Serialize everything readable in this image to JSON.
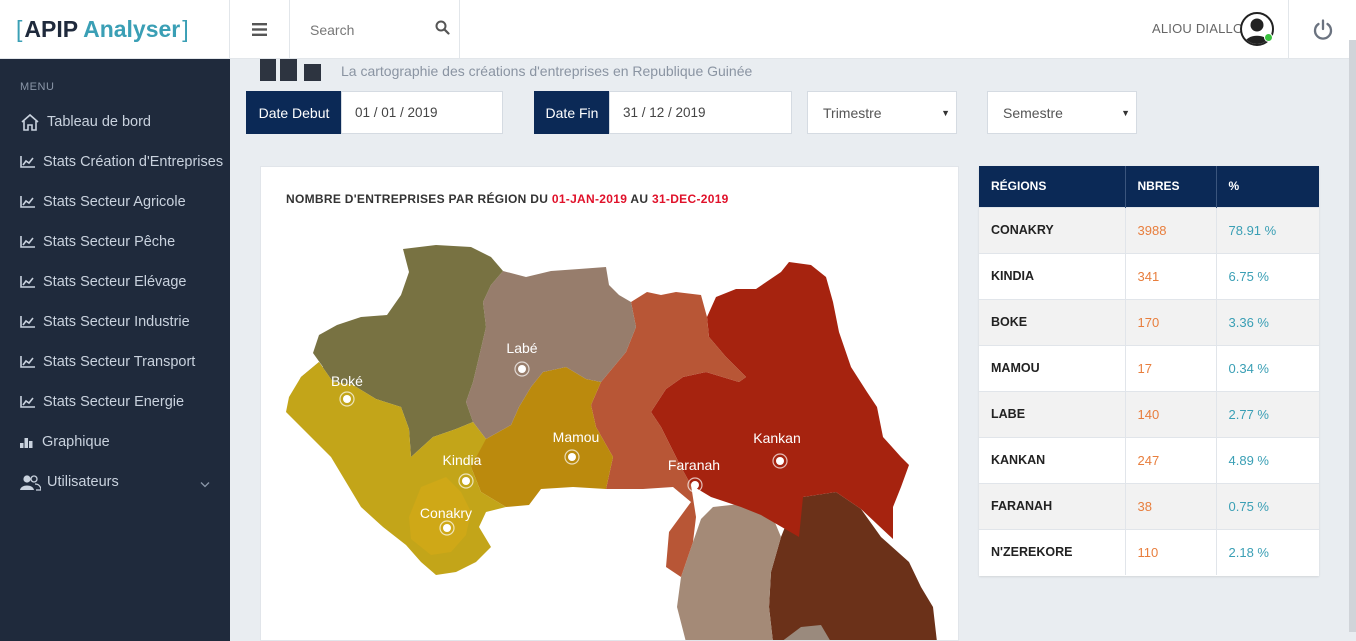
{
  "brand": {
    "open": "[",
    "name1": "APIP",
    "name2": "Analyser",
    "close": "]"
  },
  "header": {
    "search_placeholder": "Search",
    "user_name": "ALIOU DIALLO"
  },
  "sidebar": {
    "menu_title": "MENU",
    "items": [
      {
        "label": "Tableau de bord",
        "icon": "home-icon"
      },
      {
        "label": "Stats Création d'Entreprises",
        "icon": "line-chart-icon"
      },
      {
        "label": "Stats Secteur Agricole",
        "icon": "line-chart-icon"
      },
      {
        "label": "Stats Secteur Pêche",
        "icon": "line-chart-icon"
      },
      {
        "label": "Stats Secteur Elévage",
        "icon": "line-chart-icon"
      },
      {
        "label": "Stats Secteur Industrie",
        "icon": "line-chart-icon"
      },
      {
        "label": "Stats Secteur Transport",
        "icon": "line-chart-icon"
      },
      {
        "label": "Stats Secteur Energie",
        "icon": "line-chart-icon"
      },
      {
        "label": "Graphique",
        "icon": "bar-chart-icon"
      },
      {
        "label": "Utilisateurs",
        "icon": "users-icon"
      }
    ]
  },
  "page": {
    "subtitle": "La cartographie des créations d'entreprises en Republique Guinée"
  },
  "filters": {
    "date_debut_label": "Date Debut",
    "date_debut_value": "01 / 01 / 2019",
    "date_fin_label": "Date Fin",
    "date_fin_value": "31 / 12 / 2019",
    "trimestre": "Trimestre",
    "semestre": "Semestre"
  },
  "map": {
    "title_prefix": "NOMBRE D'ENTREPRISES PAR RÉGION DU",
    "date_from": "01-JAN-2019",
    "connector": "AU",
    "date_to": "31-DEC-2019",
    "labels": {
      "boke": "Boké",
      "labe": "Labé",
      "mamou": "Mamou",
      "kindia": "Kindia",
      "conakry": "Conakry",
      "faranah": "Faranah",
      "kankan": "Kankan"
    },
    "colors": {
      "boke": "#787242",
      "labe": "#977d6c",
      "mamou": "#bb8a0d",
      "kindia": "#c3a519",
      "faranah": "#b85636",
      "kankan": "#a6230f",
      "nzerekore": "#6b3119",
      "south": "#a48a77"
    }
  },
  "table": {
    "headers": {
      "region": "RÉGIONS",
      "count": "NBRES",
      "pct": "%"
    },
    "rows": [
      {
        "region": "CONAKRY",
        "count": "3988",
        "pct": "78.91 %"
      },
      {
        "region": "KINDIA",
        "count": "341",
        "pct": "6.75 %"
      },
      {
        "region": "BOKE",
        "count": "170",
        "pct": "3.36 %"
      },
      {
        "region": "MAMOU",
        "count": "17",
        "pct": "0.34 %"
      },
      {
        "region": "LABE",
        "count": "140",
        "pct": "2.77 %"
      },
      {
        "region": "KANKAN",
        "count": "247",
        "pct": "4.89 %"
      },
      {
        "region": "FARANAH",
        "count": "38",
        "pct": "0.75 %"
      },
      {
        "region": "N'ZEREKORE",
        "count": "110",
        "pct": "2.18 %"
      }
    ]
  }
}
